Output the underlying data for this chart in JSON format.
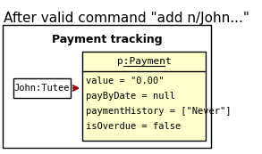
{
  "title": "After valid command \"add n/John...\"",
  "diagram_title": "Payment tracking",
  "outer_box_color": "#ffffff",
  "outer_box_edge": "#000000",
  "payment_box_color": "#ffffcc",
  "payment_box_edge": "#000000",
  "tutee_box_color": "#ffffff",
  "tutee_box_edge": "#000000",
  "tutee_label": "John:Tutee",
  "payment_header": "p:Payment",
  "payment_attrs": [
    "value = \"0.00\"",
    "payByDate = null",
    "paymentHistory = [\"Never\"]",
    "isOverdue = false"
  ],
  "arrow_color": "#8b0000",
  "title_fontsize": 11,
  "diagram_title_fontsize": 9,
  "label_fontsize": 7.5,
  "header_fontsize": 8
}
